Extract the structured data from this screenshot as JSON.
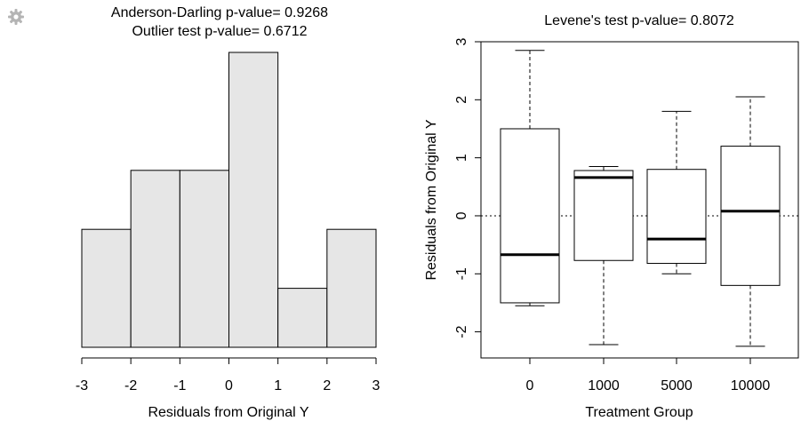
{
  "chart_data": [
    {
      "type": "bar",
      "subtype": "histogram",
      "title": "Anderson-Darling p-value= 0.9268",
      "subtitle": "Outlier test p-value= 0.6712",
      "xlabel": "Residuals from Original Y",
      "ylabel": "",
      "bin_edges": [
        -3,
        -2,
        -1,
        0,
        1,
        2,
        3
      ],
      "counts": [
        2,
        3,
        3,
        5,
        1,
        2
      ],
      "xlim": [
        -3,
        3
      ],
      "xticks": [
        "-3",
        "-2",
        "-1",
        "0",
        "1",
        "2",
        "3"
      ],
      "bar_color": "#e6e6e6",
      "y_axis_shown": false,
      "grid": false
    },
    {
      "type": "box",
      "title": "Levene's test p-value= 0.8072",
      "xlabel": "Treatment Group",
      "ylabel": "Residuals from Original Y",
      "categories": [
        "0",
        "1000",
        "5000",
        "10000"
      ],
      "boxes": [
        {
          "min": -1.55,
          "q1": -1.5,
          "median": -0.67,
          "q3": 1.5,
          "max": 2.85
        },
        {
          "min": -2.22,
          "q1": -0.77,
          "median": 0.66,
          "q3": 0.78,
          "max": 0.85
        },
        {
          "min": -1.0,
          "q1": -0.82,
          "median": -0.4,
          "q3": 0.8,
          "max": 1.8
        },
        {
          "min": -2.25,
          "q1": -1.2,
          "median": 0.08,
          "q3": 1.2,
          "max": 2.05
        }
      ],
      "ylim": [
        -2.45,
        3.0
      ],
      "yticks": [
        "-2",
        "-1",
        "0",
        "1",
        "2",
        "3"
      ],
      "reference_line": 0,
      "reference_line_style": "dotted",
      "grid": false
    }
  ],
  "icons": {
    "gear": "gear-icon"
  },
  "colors": {
    "gear": "#b4b4b4"
  }
}
